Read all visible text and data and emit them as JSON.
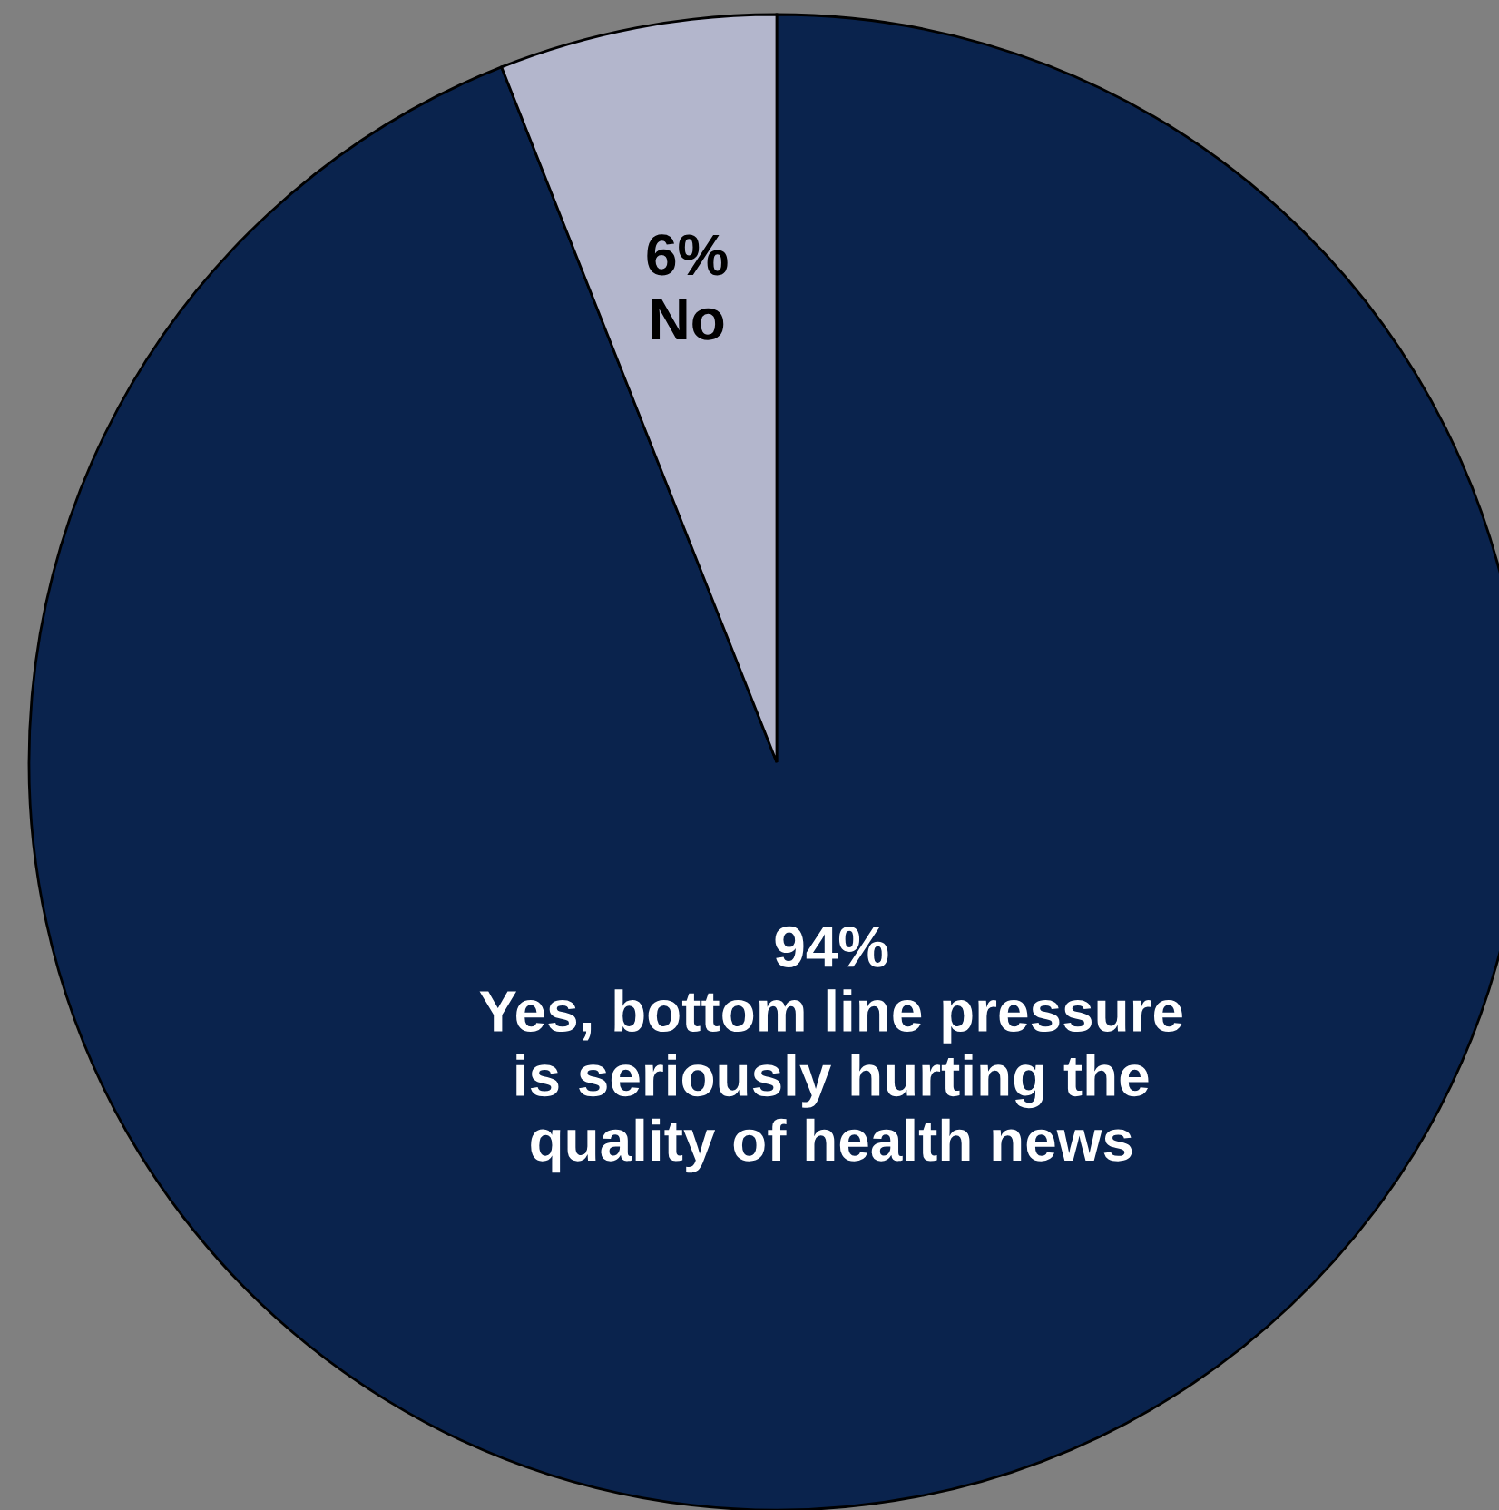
{
  "chart_data": {
    "type": "pie",
    "categories": [
      "Yes, bottom line pressure\nis seriously hurting the\nquality of health news",
      "No"
    ],
    "values": [
      94,
      6
    ],
    "value_labels": [
      "94%",
      "6%"
    ],
    "colors": [
      "#0a234d",
      "#b3b6cc"
    ],
    "legend": false
  }
}
